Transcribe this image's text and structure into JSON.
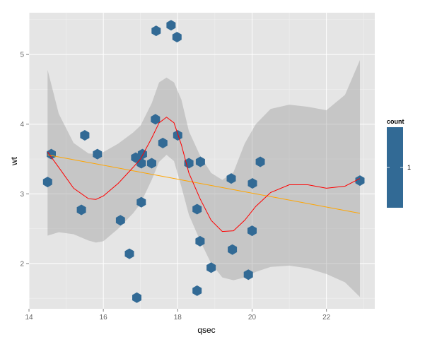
{
  "chart_data": {
    "type": "scatter",
    "geom": "hexbin",
    "xlabel": "qsec",
    "ylabel": "wt",
    "xlim": [
      14,
      23.3
    ],
    "ylim": [
      1.35,
      5.6
    ],
    "x_ticks": [
      14,
      16,
      18,
      20,
      22
    ],
    "y_ticks": [
      2,
      3,
      4,
      5
    ],
    "grid": true,
    "background": "#E5E5E5",
    "hex_color": "#326A95",
    "points": [
      {
        "x": 14.5,
        "y": 3.17
      },
      {
        "x": 14.6,
        "y": 3.57
      },
      {
        "x": 15.41,
        "y": 2.77
      },
      {
        "x": 15.5,
        "y": 3.84
      },
      {
        "x": 15.84,
        "y": 3.57
      },
      {
        "x": 16.46,
        "y": 2.62
      },
      {
        "x": 16.7,
        "y": 2.14
      },
      {
        "x": 16.87,
        "y": 3.52
      },
      {
        "x": 16.9,
        "y": 1.51
      },
      {
        "x": 17.02,
        "y": 2.88
      },
      {
        "x": 17.02,
        "y": 3.44
      },
      {
        "x": 17.05,
        "y": 3.57
      },
      {
        "x": 17.3,
        "y": 3.44
      },
      {
        "x": 17.4,
        "y": 4.07
      },
      {
        "x": 17.42,
        "y": 5.34
      },
      {
        "x": 17.6,
        "y": 3.73
      },
      {
        "x": 17.82,
        "y": 5.42
      },
      {
        "x": 17.98,
        "y": 5.25
      },
      {
        "x": 18.0,
        "y": 3.84
      },
      {
        "x": 18.3,
        "y": 3.44
      },
      {
        "x": 18.52,
        "y": 1.61
      },
      {
        "x": 18.52,
        "y": 2.78
      },
      {
        "x": 18.6,
        "y": 2.32
      },
      {
        "x": 18.9,
        "y": 1.94
      },
      {
        "x": 18.61,
        "y": 3.46
      },
      {
        "x": 19.44,
        "y": 3.22
      },
      {
        "x": 19.47,
        "y": 2.2
      },
      {
        "x": 19.9,
        "y": 1.84
      },
      {
        "x": 20.0,
        "y": 2.47
      },
      {
        "x": 20.01,
        "y": 3.15
      },
      {
        "x": 20.22,
        "y": 3.46
      },
      {
        "x": 22.9,
        "y": 3.19
      }
    ],
    "loess": {
      "color": "#FF0000",
      "x": [
        14.5,
        14.8,
        15.2,
        15.6,
        15.8,
        16.0,
        16.4,
        16.8,
        17.0,
        17.3,
        17.5,
        17.7,
        17.9,
        18.1,
        18.3,
        18.6,
        18.9,
        19.2,
        19.5,
        19.8,
        20.1,
        20.5,
        21.0,
        21.5,
        22.0,
        22.5,
        22.9
      ],
      "y": [
        3.6,
        3.38,
        3.08,
        2.93,
        2.92,
        2.97,
        3.15,
        3.38,
        3.5,
        3.8,
        4.02,
        4.1,
        4.02,
        3.7,
        3.3,
        2.93,
        2.62,
        2.46,
        2.47,
        2.62,
        2.82,
        3.02,
        3.13,
        3.13,
        3.08,
        3.11,
        3.22
      ],
      "ci_upper": [
        4.78,
        4.15,
        3.73,
        3.58,
        3.57,
        3.6,
        3.72,
        3.88,
        3.98,
        4.3,
        4.6,
        4.67,
        4.6,
        4.35,
        3.9,
        3.55,
        3.3,
        3.2,
        3.31,
        3.72,
        4.0,
        4.22,
        4.28,
        4.25,
        4.2,
        4.42,
        4.92
      ],
      "ci_lower": [
        2.4,
        2.45,
        2.42,
        2.33,
        2.3,
        2.32,
        2.5,
        2.72,
        2.86,
        3.2,
        3.46,
        3.56,
        3.47,
        3.1,
        2.7,
        2.33,
        2.0,
        1.8,
        1.76,
        1.8,
        1.88,
        1.95,
        1.97,
        1.93,
        1.85,
        1.73,
        1.52
      ]
    },
    "lm": {
      "color": "#FFA500",
      "x": [
        14.5,
        22.9
      ],
      "y": [
        3.56,
        2.72
      ]
    },
    "legend": {
      "title": "count",
      "labels": [
        "1"
      ],
      "position": "right"
    }
  }
}
